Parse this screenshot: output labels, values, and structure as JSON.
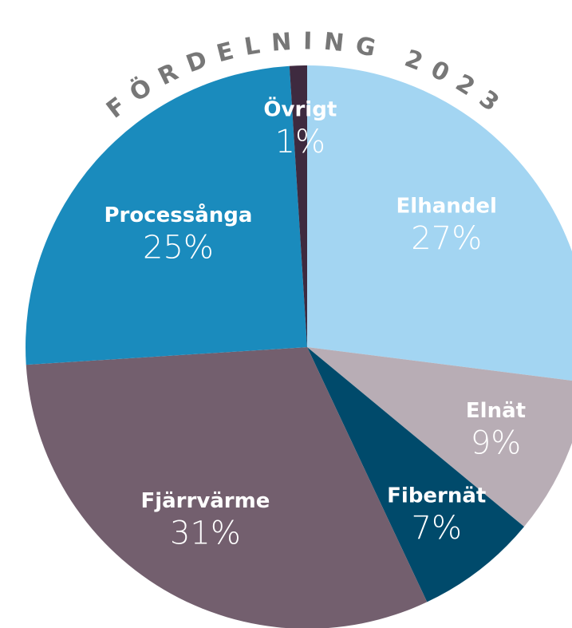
{
  "chart_data": {
    "type": "pie",
    "title": "FÖRDELNING 2023",
    "categories": [
      "Elhandel",
      "Elnät",
      "Fibernät",
      "Fjärrvärme",
      "Processånga",
      "Övrigt"
    ],
    "values": [
      27,
      9,
      7,
      31,
      25,
      1
    ],
    "value_labels": [
      "27%",
      "9%",
      "7%",
      "31%",
      "25%",
      "1%"
    ],
    "colors": [
      "#a3d5f2",
      "#b8adb5",
      "#004a6b",
      "#735f6e",
      "#1a8bbd",
      "#3e2a3f"
    ]
  }
}
